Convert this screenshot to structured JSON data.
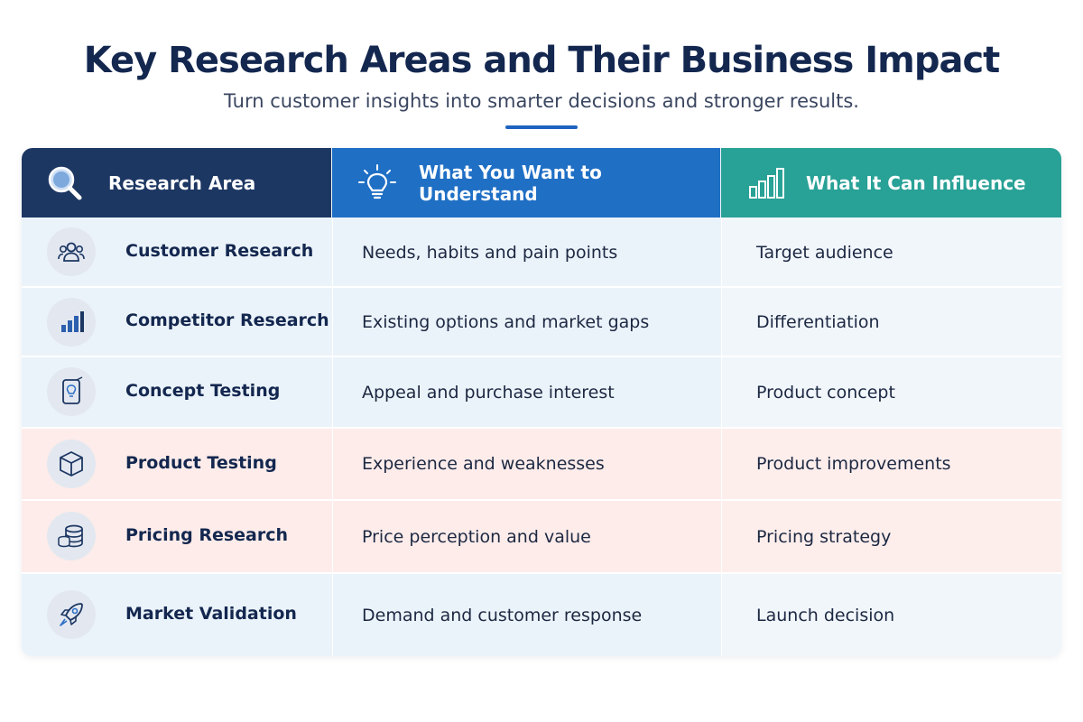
{
  "title": "Key Research Areas and Their Business Impact",
  "subtitle": "Turn customer insights into smarter decisions and stronger results.",
  "colors": {
    "header_navy": "#1d3763",
    "header_blue": "#1f6fc5",
    "header_teal": "#28a196",
    "row_blue": "#ebf3fa",
    "row_pink": "#fdecea",
    "accent": "#1e63c0"
  },
  "headers": [
    {
      "label": "Research Area",
      "icon": "magnifier-icon"
    },
    {
      "label": "What You Want to Understand",
      "icon": "lightbulb-icon"
    },
    {
      "label": "What It Can Influence",
      "icon": "bar-chart-icon"
    }
  ],
  "rows": [
    {
      "area": "Customer Research",
      "understand": "Needs, habits and pain points",
      "influence": "Target audience",
      "icon": "people-icon"
    },
    {
      "area": "Competitor Research",
      "understand": "Existing options and market gaps",
      "influence": "Differentiation",
      "icon": "bar-chart-icon"
    },
    {
      "area": "Concept Testing",
      "understand": "Appeal and purchase interest",
      "influence": "Product concept",
      "icon": "idea-card-icon"
    },
    {
      "area": "Product Testing",
      "understand": "Experience and weaknesses",
      "influence": "Product improvements",
      "icon": "box-icon"
    },
    {
      "area": "Pricing Research",
      "understand": "Price perception and value",
      "influence": "Pricing strategy",
      "icon": "coins-icon"
    },
    {
      "area": "Market Validation",
      "understand": "Demand and customer response",
      "influence": "Launch decision",
      "icon": "rocket-icon"
    }
  ]
}
